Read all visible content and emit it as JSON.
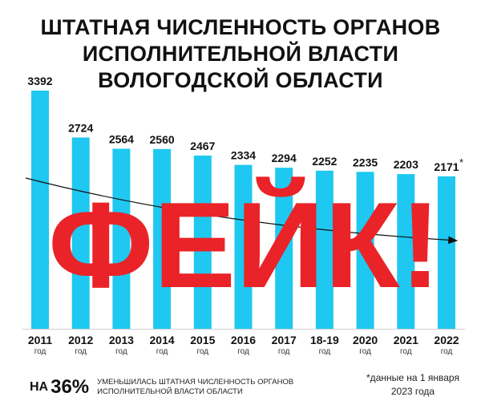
{
  "title_lines": [
    "ШТАТНАЯ ЧИСЛЕННОСТЬ ОРГАНОВ",
    "ИСПОЛНИТЕЛЬНОЙ ВЛАСТИ",
    "ВОЛОГОДСКОЙ ОБЛАСТИ"
  ],
  "chart_data": {
    "type": "bar",
    "title": "ШТАТНАЯ ЧИСЛЕННОСТЬ ОРГАНОВ ИСПОЛНИТЕЛЬНОЙ ВЛАСТИ ВОЛОГОДСКОЙ ОБЛАСТИ",
    "categories": [
      "2011",
      "2012",
      "2013",
      "2014",
      "2015",
      "2016",
      "2017",
      "18-19",
      "2020",
      "2021",
      "2022"
    ],
    "category_sublabel": "год",
    "values": [
      3392,
      2724,
      2564,
      2560,
      2467,
      2334,
      2294,
      2252,
      2235,
      2203,
      2171
    ],
    "value_labels": [
      "3392",
      "2724",
      "2564",
      "2560",
      "2467",
      "2334",
      "2294",
      "2252",
      "2235",
      "2203",
      "2171"
    ],
    "last_value_marker": "*",
    "ylim": [
      0,
      3392
    ],
    "trend_arrow": true,
    "bar_color": "#1ec8f0",
    "grid": false
  },
  "overlay": {
    "text": "ФЕЙК!",
    "color": "#ea2328"
  },
  "summary": {
    "prefix": "НА",
    "percent": "36%",
    "text_line1": "УМЕНЬШИЛАСЬ ШТАТНАЯ ЧИСЛЕННОСТЬ ОРГАНОВ",
    "text_line2": "ИСПОЛНИТЕЛЬНОЙ ВЛАСТИ ОБЛАСТИ"
  },
  "footnote": {
    "line1": "*данные на 1 января",
    "line2": "2023 года"
  }
}
